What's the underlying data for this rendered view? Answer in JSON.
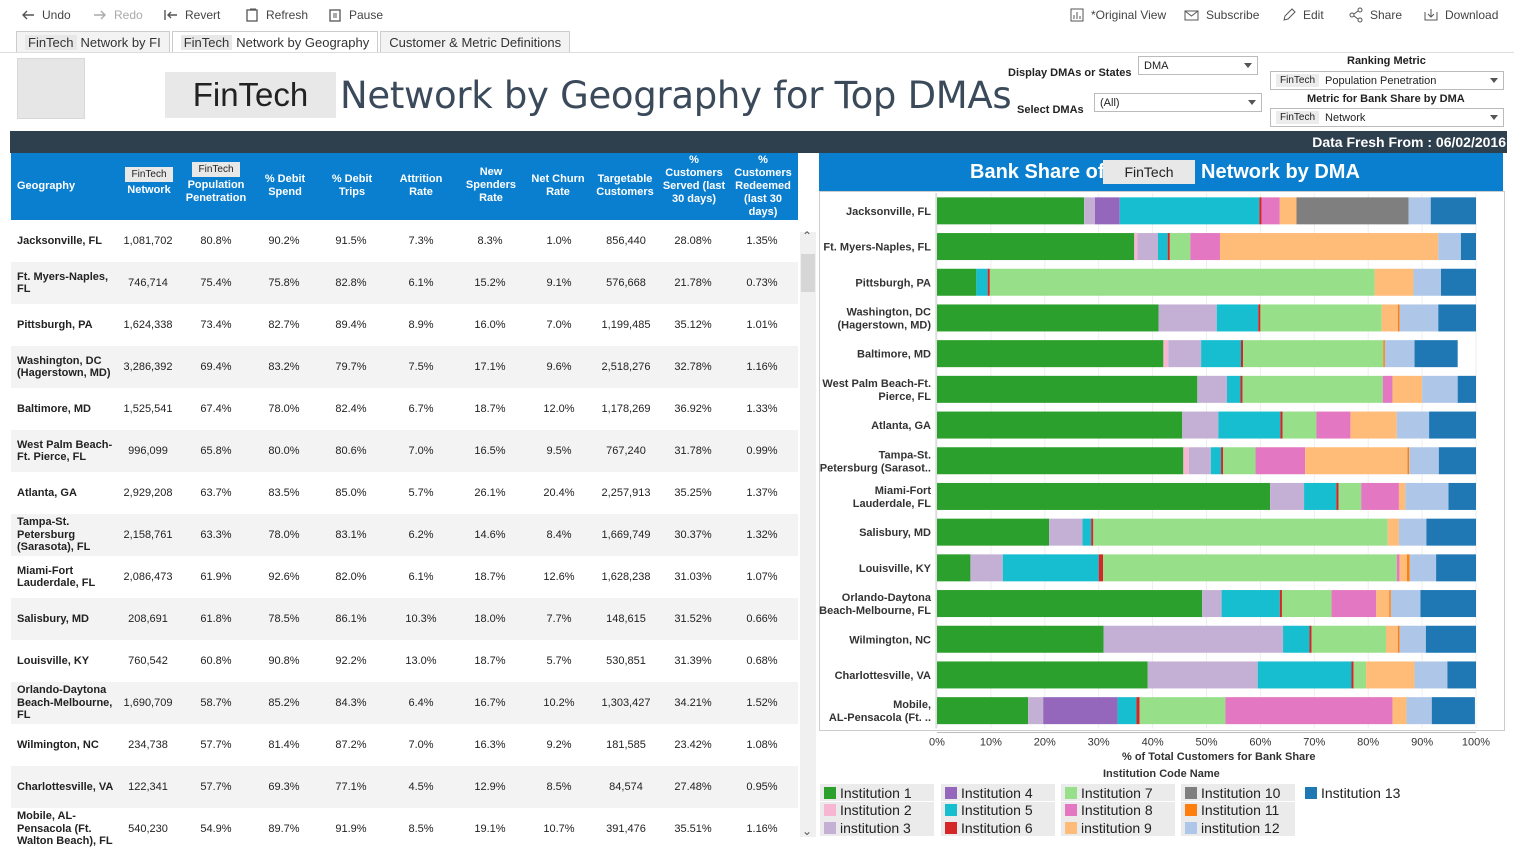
{
  "toolbar": {
    "undo": "Undo",
    "redo": "Redo",
    "revert": "Revert",
    "refresh": "Refresh",
    "pause": "Pause",
    "original_view": "*Original View",
    "subscribe": "Subscribe",
    "edit": "Edit",
    "share": "Share",
    "download": "Download"
  },
  "tabs": [
    {
      "brand": "FinTech",
      "label": "Network by FI"
    },
    {
      "brand": "FinTech",
      "label": "Network by Geography"
    },
    {
      "brand": "",
      "label": "Customer & Metric Definitions"
    }
  ],
  "title": {
    "brand": "FinTech",
    "text": "Network by Geography for Top DMAs"
  },
  "controls": {
    "display_label": "Display DMAs or States",
    "display_value": "DMA",
    "select_label": "Select DMAs",
    "select_value": "(All)",
    "ranking_label": "Ranking Metric",
    "ranking_chip": "FinTech",
    "ranking_value": "Population Penetration",
    "bankshare_label": "Metric for Bank Share by DMA",
    "bankshare_chip": "FinTech",
    "bankshare_value": "Network"
  },
  "data_fresh": "Data Fresh From : 06/02/2016",
  "table": {
    "headers": {
      "geography": "Geography",
      "network_chip": "FinTech",
      "network": "Network",
      "penetration_chip": "FinTech",
      "penetration": "Population Penetration",
      "debit_spend": "% Debit Spend",
      "debit_trips": "% Debit Trips",
      "attrition": "Attrition Rate",
      "new_spenders": "New Spenders Rate",
      "net_churn": "Net Churn Rate",
      "targetable": "Targetable Customers",
      "served": "% Customers Served (last 30 days)",
      "redeemed": "% Customers Redeemed (last 30 days)"
    },
    "rows": [
      [
        "Jacksonville, FL",
        "1,081,702",
        "80.8%",
        "90.2%",
        "91.5%",
        "7.3%",
        "8.3%",
        "1.0%",
        "856,440",
        "28.08%",
        "1.35%"
      ],
      [
        "Ft. Myers-Naples, FL",
        "746,714",
        "75.4%",
        "75.8%",
        "82.8%",
        "6.1%",
        "15.2%",
        "9.1%",
        "576,668",
        "21.78%",
        "0.73%"
      ],
      [
        "Pittsburgh, PA",
        "1,624,338",
        "73.4%",
        "82.7%",
        "89.4%",
        "8.9%",
        "16.0%",
        "7.0%",
        "1,199,485",
        "35.12%",
        "1.01%"
      ],
      [
        "Washington, DC (Hagerstown, MD)",
        "3,286,392",
        "69.4%",
        "83.2%",
        "79.7%",
        "7.5%",
        "17.1%",
        "9.6%",
        "2,518,276",
        "32.78%",
        "1.16%"
      ],
      [
        "Baltimore, MD",
        "1,525,541",
        "67.4%",
        "78.0%",
        "82.4%",
        "6.7%",
        "18.7%",
        "12.0%",
        "1,178,269",
        "36.92%",
        "1.33%"
      ],
      [
        "West Palm Beach-Ft. Pierce, FL",
        "996,099",
        "65.8%",
        "80.0%",
        "80.6%",
        "7.0%",
        "16.5%",
        "9.5%",
        "767,240",
        "31.78%",
        "0.99%"
      ],
      [
        "Atlanta, GA",
        "2,929,208",
        "63.7%",
        "83.5%",
        "85.0%",
        "5.7%",
        "26.1%",
        "20.4%",
        "2,257,913",
        "35.25%",
        "1.37%"
      ],
      [
        "Tampa-St. Petersburg (Sarasota), FL",
        "2,158,761",
        "63.3%",
        "78.0%",
        "83.1%",
        "6.2%",
        "14.6%",
        "8.4%",
        "1,669,749",
        "30.37%",
        "1.32%"
      ],
      [
        "Miami-Fort Lauderdale, FL",
        "2,086,473",
        "61.9%",
        "92.6%",
        "82.0%",
        "6.1%",
        "18.7%",
        "12.6%",
        "1,628,238",
        "31.03%",
        "1.07%"
      ],
      [
        "Salisbury, MD",
        "208,691",
        "61.8%",
        "78.5%",
        "86.1%",
        "10.3%",
        "18.0%",
        "7.7%",
        "148,615",
        "31.52%",
        "0.66%"
      ],
      [
        "Louisville, KY",
        "760,542",
        "60.8%",
        "90.8%",
        "92.2%",
        "13.0%",
        "18.7%",
        "5.7%",
        "530,851",
        "31.39%",
        "0.68%"
      ],
      [
        "Orlando-Daytona Beach-Melbourne, FL",
        "1,690,709",
        "58.7%",
        "85.2%",
        "84.3%",
        "6.4%",
        "16.7%",
        "10.2%",
        "1,303,427",
        "34.21%",
        "1.52%"
      ],
      [
        "Wilmington, NC",
        "234,738",
        "57.7%",
        "81.4%",
        "87.2%",
        "7.0%",
        "16.3%",
        "9.2%",
        "181,585",
        "23.42%",
        "1.08%"
      ],
      [
        "Charlottesville, VA",
        "122,341",
        "57.7%",
        "69.3%",
        "77.1%",
        "4.5%",
        "12.9%",
        "8.5%",
        "84,574",
        "27.48%",
        "0.95%"
      ],
      [
        "Mobile, AL-Pensacola (Ft. Walton Beach), FL",
        "540,230",
        "54.9%",
        "89.7%",
        "91.9%",
        "8.5%",
        "19.1%",
        "10.7%",
        "391,476",
        "35.51%",
        "1.16%"
      ]
    ]
  },
  "chart_header": {
    "prefix": "Bank Share of",
    "brand": "FinTech",
    "suffix": "Network by DMA"
  },
  "chart_data": {
    "type": "bar",
    "orientation": "horizontal-stacked",
    "xlabel": "% of Total Customers for Bank Share",
    "xlim": [
      0,
      100
    ],
    "xticks": [
      "0%",
      "10%",
      "20%",
      "30%",
      "40%",
      "50%",
      "60%",
      "70%",
      "80%",
      "90%",
      "100%"
    ],
    "legend_title": "Institution Code Name",
    "categories": [
      "Jacksonville, FL",
      "Ft. Myers-Naples, FL",
      "Pittsburgh, PA",
      "Washington, DC (Hagerstown, MD)",
      "Baltimore, MD",
      "West Palm Beach-Ft. Pierce, FL",
      "Atlanta, GA",
      "Tampa-St. Petersburg (Sarasot..",
      "Miami-Fort Lauderdale, FL",
      "Salisbury, MD",
      "Louisville, KY",
      "Orlando-Daytona Beach-Melbourne, FL",
      "Wilmington, NC",
      "Charlottesville, VA",
      "Mobile, AL-Pensacola (Ft. .."
    ],
    "category_lines": [
      [
        "Jacksonville, FL"
      ],
      [
        "Ft. Myers-Naples, FL"
      ],
      [
        "Pittsburgh, PA"
      ],
      [
        "Washington, DC",
        "(Hagerstown, MD)"
      ],
      [
        "Baltimore, MD"
      ],
      [
        "West Palm Beach-Ft.",
        "Pierce, FL"
      ],
      [
        "Atlanta, GA"
      ],
      [
        "Tampa-St.",
        "Petersburg (Sarasot.."
      ],
      [
        "Miami-Fort",
        "Lauderdale, FL"
      ],
      [
        "Salisbury, MD"
      ],
      [
        "Louisville, KY"
      ],
      [
        "Orlando-Daytona",
        "Beach-Melbourne, FL"
      ],
      [
        "Wilmington, NC"
      ],
      [
        "Charlottesville, VA"
      ],
      [
        "Mobile,",
        "AL-Pensacola (Ft. .."
      ]
    ],
    "series": [
      {
        "name": "Institution 1",
        "color": "#2ca02c",
        "values": [
          27.3,
          36.6,
          7.3,
          41.1,
          42.0,
          48.3,
          45.5,
          45.7,
          61.8,
          20.8,
          6.2,
          49.2,
          30.9,
          39.1,
          16.9
        ]
      },
      {
        "name": "Institution 2",
        "color": "#f7b6d2",
        "values": [
          0,
          0.6,
          0,
          0,
          0.9,
          0,
          0,
          1.0,
          0,
          0,
          0,
          0,
          0,
          0,
          0
        ]
      },
      {
        "name": "institution 3",
        "color": "#c5b0d5",
        "values": [
          2.0,
          3.8,
          0,
          10.8,
          6.1,
          5.5,
          6.7,
          4.1,
          6.3,
          6.2,
          6.0,
          3.6,
          33.3,
          20.4,
          2.8
        ]
      },
      {
        "name": "Institution 4",
        "color": "#9467bd",
        "values": [
          4.6,
          0,
          0,
          0,
          0,
          0,
          0,
          0,
          0,
          0,
          0,
          0,
          0,
          0,
          13.8
        ]
      },
      {
        "name": "Institution 5",
        "color": "#17becf",
        "values": [
          25.9,
          1.8,
          2.1,
          7.7,
          7.4,
          2.5,
          11.5,
          1.9,
          6.0,
          1.6,
          17.8,
          10.8,
          4.9,
          17.4,
          3.5
        ]
      },
      {
        "name": "Institution 6",
        "color": "#d62728",
        "values": [
          0.4,
          0.4,
          0.4,
          0.4,
          0.4,
          0.4,
          0.4,
          0.4,
          0.4,
          0.4,
          0.8,
          0.4,
          0.4,
          0.4,
          0.6
        ]
      },
      {
        "name": "Institution 7",
        "color": "#98df8a",
        "values": [
          0,
          3.8,
          71.4,
          22.5,
          26.0,
          26.0,
          6.3,
          6.0,
          4.2,
          54.6,
          54.5,
          9.2,
          13.8,
          2.3,
          15.9
        ]
      },
      {
        "name": "Institution 8",
        "color": "#e377c2",
        "values": [
          3.4,
          5.5,
          0,
          0,
          0,
          1.8,
          6.3,
          9.2,
          7.0,
          0,
          0.5,
          8.3,
          0,
          0,
          31.0
        ]
      },
      {
        "name": "institution 9",
        "color": "#ffbb78",
        "values": [
          3.1,
          40.5,
          7.2,
          3.0,
          0,
          5.5,
          8.6,
          19.0,
          1.2,
          2.1,
          1.4,
          2.4,
          2.2,
          9.0,
          2.6
        ]
      },
      {
        "name": "Institution 10",
        "color": "#7f7f7f",
        "values": [
          20.8,
          0,
          0,
          0,
          0,
          0,
          0,
          0,
          0,
          0,
          0,
          0,
          0,
          0,
          0
        ]
      },
      {
        "name": "Institution 11",
        "color": "#ff7f0e",
        "values": [
          0,
          0,
          0,
          0.3,
          0.3,
          0,
          0,
          0.3,
          0,
          0,
          0.5,
          0.3,
          0.3,
          0,
          0
        ]
      },
      {
        "name": "institution 12",
        "color": "#aec7e8",
        "values": [
          4.1,
          4.2,
          5.1,
          7.2,
          5.5,
          6.6,
          6.0,
          5.5,
          8.0,
          5.1,
          4.9,
          5.5,
          4.9,
          6.1,
          4.7
        ]
      },
      {
        "name": "Institution 13",
        "color": "#1f77b4",
        "values": [
          8.4,
          2.8,
          6.5,
          7.0,
          8.0,
          3.4,
          8.7,
          6.9,
          5.1,
          9.2,
          7.4,
          10.3,
          9.3,
          5.3,
          8.0
        ]
      }
    ]
  }
}
